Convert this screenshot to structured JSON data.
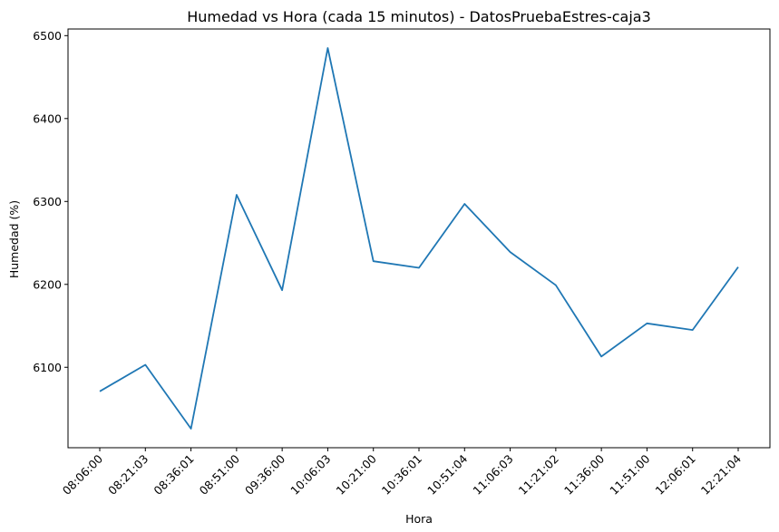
{
  "chart_data": {
    "type": "line",
    "title": "Humedad vs Hora (cada 15 minutos) - DatosPruebaEstres-caja3",
    "xlabel": "Hora",
    "ylabel": "Humedad (%)",
    "categories": [
      "08:06:00",
      "08:21:03",
      "08:36:01",
      "08:51:00",
      "09:36:00",
      "10:06:03",
      "10:21:00",
      "10:36:01",
      "10:51:04",
      "11:06:03",
      "11:21:02",
      "11:36:00",
      "11:51:00",
      "12:06:01",
      "12:21:04"
    ],
    "series": [
      {
        "values": [
          6071,
          6103,
          6026,
          6308,
          6193,
          6485,
          6228,
          6220,
          6297,
          6239,
          6199,
          6113,
          6153,
          6145,
          6221
        ]
      }
    ],
    "ylim": [
      6003,
      6508
    ],
    "yticks": [
      6100,
      6200,
      6300,
      6400,
      6500
    ],
    "grid": false,
    "color": "#1f77b4"
  }
}
